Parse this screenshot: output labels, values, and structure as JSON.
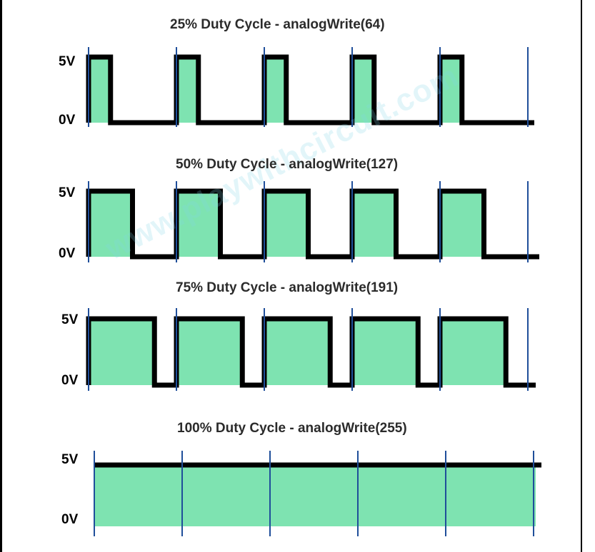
{
  "watermark": "www.playwithcircuit.com",
  "colors": {
    "fill": "#7ee3b1",
    "line": "#000000",
    "marker": "#1f4e9a"
  },
  "panels": [
    {
      "title": "25% Duty Cycle - analogWrite(64)",
      "high_label": "5V",
      "low_label": "0V",
      "duty": 0.25
    },
    {
      "title": "50% Duty Cycle - analogWrite(127)",
      "high_label": "5V",
      "low_label": "0V",
      "duty": 0.5
    },
    {
      "title": "75% Duty Cycle - analogWrite(191)",
      "high_label": "5V",
      "low_label": "0V",
      "duty": 0.75
    },
    {
      "title": "100% Duty Cycle - analogWrite(255)",
      "high_label": "5V",
      "low_label": "0V",
      "duty": 1.0
    }
  ]
}
